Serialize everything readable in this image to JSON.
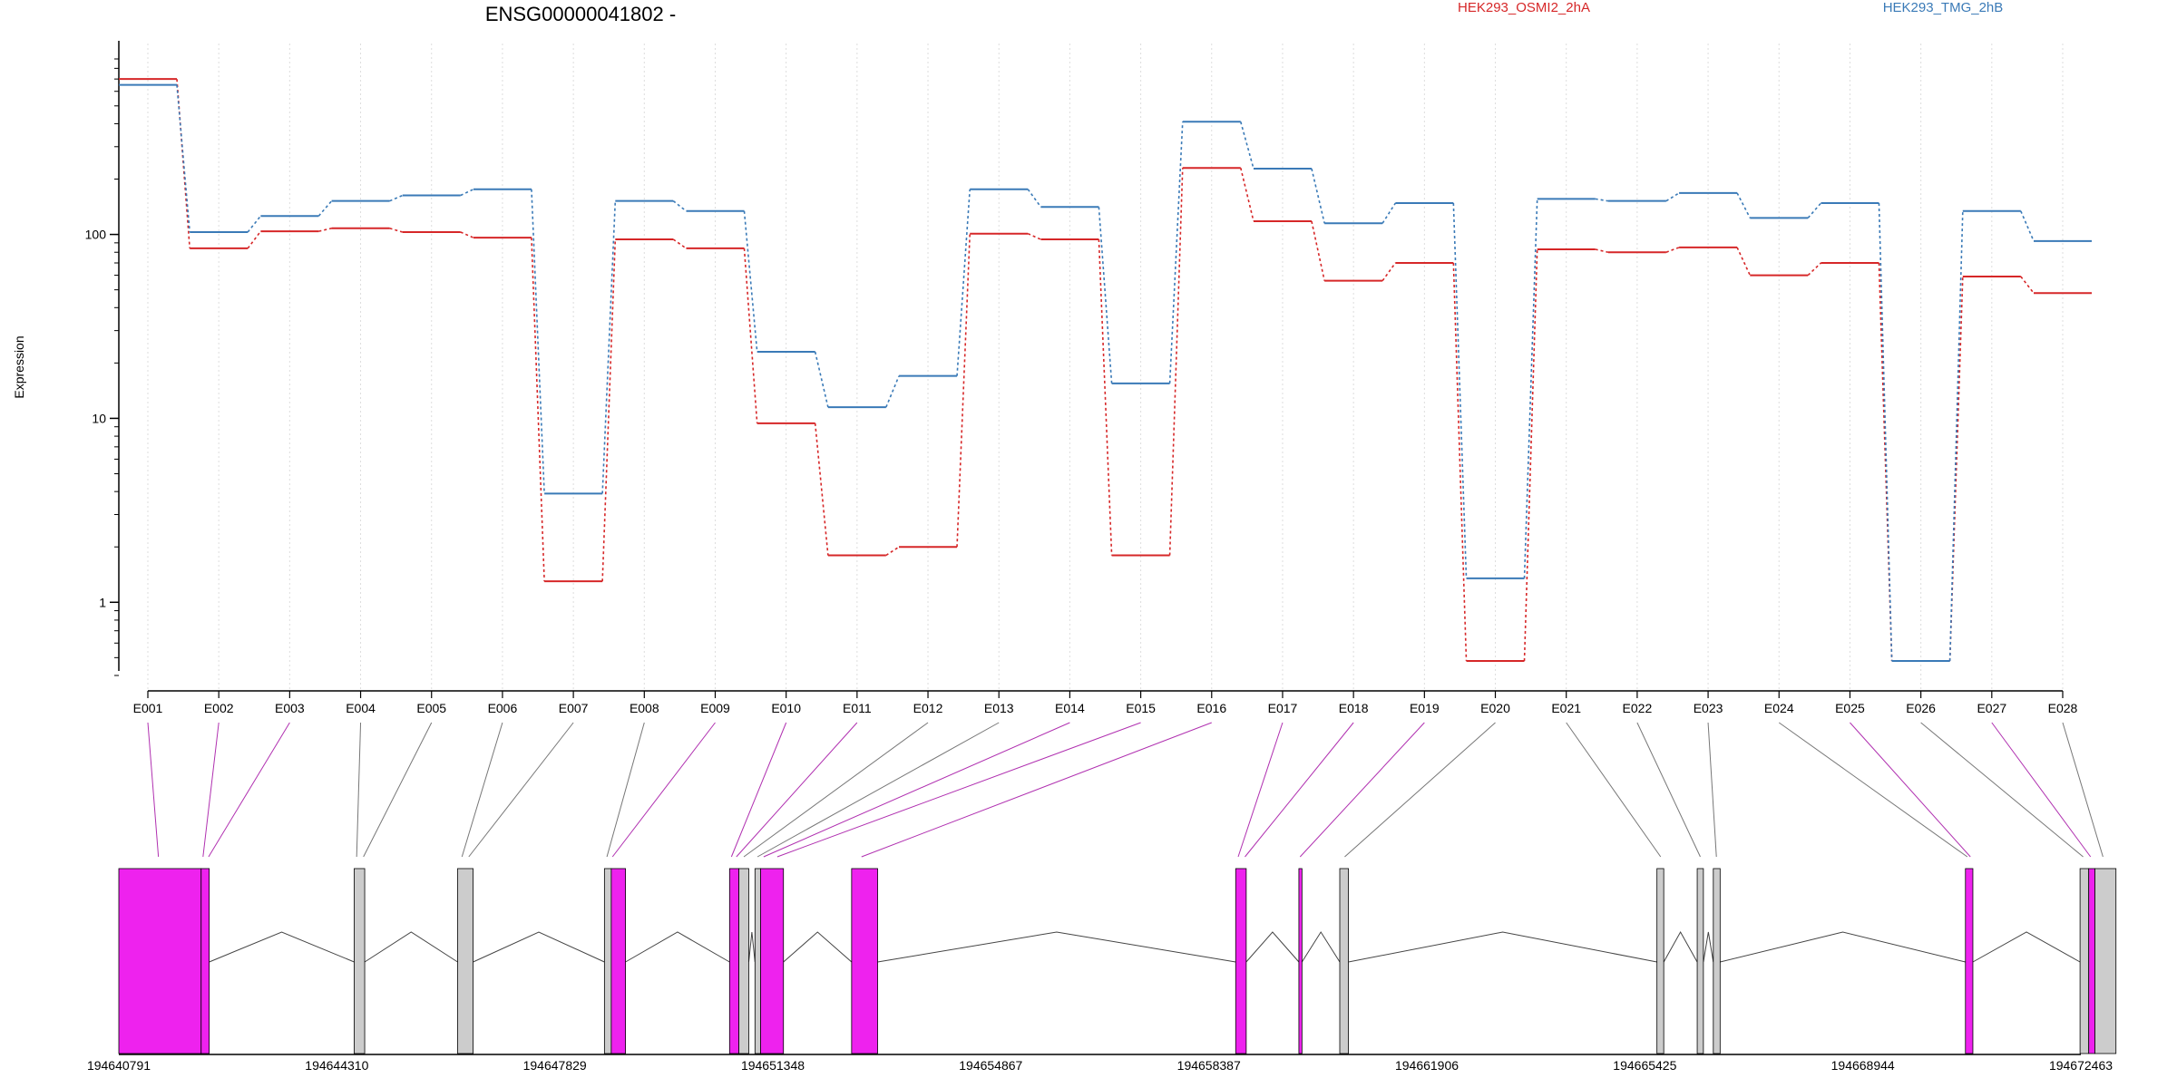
{
  "chart_data": {
    "type": "line",
    "title": "ENSG00000041802 -",
    "ylabel": "Expression",
    "yscale": "log",
    "ylim": [
      0.4,
      900
    ],
    "y_ticks": [
      1,
      10,
      100
    ],
    "y_tick_labels": [
      "1",
      "10",
      "100"
    ],
    "grid": "vertical-dotted",
    "legend_position": "top",
    "categories": [
      "E001",
      "E002",
      "E003",
      "E004",
      "E005",
      "E006",
      "E007",
      "E008",
      "E009",
      "E010",
      "E011",
      "E012",
      "E013",
      "E014",
      "E015",
      "E016",
      "E017",
      "E018",
      "E019",
      "E020",
      "E021",
      "E022",
      "E023",
      "E024",
      "E025",
      "E026",
      "E027",
      "E028"
    ],
    "series": [
      {
        "name": "HEK293_OSMI2_2hA",
        "color": "#d62728",
        "values": [
          700,
          84,
          104,
          108,
          103,
          96,
          1.3,
          94,
          84,
          9.4,
          1.8,
          2.0,
          101,
          94,
          1.8,
          230,
          118,
          56,
          70,
          0.48,
          83,
          80,
          85,
          60,
          70,
          0.48,
          59,
          48
        ]
      },
      {
        "name": "HEK293_TMG_2hB",
        "color": "#3a7ab7",
        "values": [
          650,
          103,
          126,
          152,
          163,
          176,
          3.9,
          152,
          134,
          23,
          11.5,
          17,
          176,
          141,
          15.5,
          410,
          228,
          115,
          148,
          1.35,
          156,
          152,
          168,
          123,
          148,
          0.48,
          134,
          92
        ]
      }
    ],
    "gene_model": {
      "coordinate_ticks": [
        "194640791",
        "194644310",
        "194647829",
        "194651348",
        "194654867",
        "194658387",
        "194661906",
        "194665425",
        "194668944",
        "194672463"
      ],
      "coord_start": 194640791,
      "coord_end": 194672463,
      "exon_colors": {
        "differential": "#ee22ee",
        "other": "#cccccc"
      },
      "exons": [
        {
          "start": 194640791,
          "end": 194642120,
          "differential": true
        },
        {
          "start": 194642120,
          "end": 194642250,
          "differential": true
        },
        {
          "start": 194644590,
          "end": 194644760,
          "differential": false
        },
        {
          "start": 194646260,
          "end": 194646510,
          "differential": false
        },
        {
          "start": 194648630,
          "end": 194648740,
          "differential": false
        },
        {
          "start": 194648740,
          "end": 194648970,
          "differential": true
        },
        {
          "start": 194650650,
          "end": 194650800,
          "differential": true
        },
        {
          "start": 194650800,
          "end": 194650960,
          "differential": false
        },
        {
          "start": 194651060,
          "end": 194651150,
          "differential": false
        },
        {
          "start": 194651150,
          "end": 194651520,
          "differential": true
        },
        {
          "start": 194652620,
          "end": 194653040,
          "differential": true
        },
        {
          "start": 194658820,
          "end": 194658990,
          "differential": true
        },
        {
          "start": 194659840,
          "end": 194659890,
          "differential": true
        },
        {
          "start": 194660500,
          "end": 194660640,
          "differential": false
        },
        {
          "start": 194665620,
          "end": 194665730,
          "differential": false
        },
        {
          "start": 194666270,
          "end": 194666370,
          "differential": false
        },
        {
          "start": 194666530,
          "end": 194666640,
          "differential": false
        },
        {
          "start": 194670600,
          "end": 194670720,
          "differential": true
        },
        {
          "start": 194672450,
          "end": 194672590,
          "differential": false
        },
        {
          "start": 194672590,
          "end": 194672690,
          "differential": true
        },
        {
          "start": 194672690,
          "end": 194673030,
          "differential": false
        }
      ],
      "bin_links": [
        {
          "bin": "E001",
          "pos": 194641430,
          "differential": true
        },
        {
          "bin": "E002",
          "pos": 194642150,
          "differential": true
        },
        {
          "bin": "E003",
          "pos": 194642240,
          "differential": true
        },
        {
          "bin": "E004",
          "pos": 194644630,
          "differential": false
        },
        {
          "bin": "E005",
          "pos": 194644740,
          "differential": false
        },
        {
          "bin": "E006",
          "pos": 194646330,
          "differential": false
        },
        {
          "bin": "E007",
          "pos": 194646440,
          "differential": false
        },
        {
          "bin": "E008",
          "pos": 194648670,
          "differential": false
        },
        {
          "bin": "E009",
          "pos": 194648760,
          "differential": true
        },
        {
          "bin": "E010",
          "pos": 194650680,
          "differential": true
        },
        {
          "bin": "E011",
          "pos": 194650760,
          "differential": true
        },
        {
          "bin": "E012",
          "pos": 194650880,
          "differential": false
        },
        {
          "bin": "E013",
          "pos": 194651100,
          "differential": false
        },
        {
          "bin": "E014",
          "pos": 194651200,
          "differential": true
        },
        {
          "bin": "E015",
          "pos": 194651420,
          "differential": true
        },
        {
          "bin": "E016",
          "pos": 194652780,
          "differential": true
        },
        {
          "bin": "E017",
          "pos": 194658860,
          "differential": true
        },
        {
          "bin": "E018",
          "pos": 194658970,
          "differential": true
        },
        {
          "bin": "E019",
          "pos": 194659860,
          "differential": true
        },
        {
          "bin": "E020",
          "pos": 194660580,
          "differential": false
        },
        {
          "bin": "E021",
          "pos": 194665680,
          "differential": false
        },
        {
          "bin": "E022",
          "pos": 194666320,
          "differential": false
        },
        {
          "bin": "E023",
          "pos": 194666580,
          "differential": false
        },
        {
          "bin": "E024",
          "pos": 194670630,
          "differential": false
        },
        {
          "bin": "E025",
          "pos": 194670680,
          "differential": true
        },
        {
          "bin": "E026",
          "pos": 194672500,
          "differential": false
        },
        {
          "bin": "E027",
          "pos": 194672620,
          "differential": true
        },
        {
          "bin": "E028",
          "pos": 194672820,
          "differential": false
        }
      ]
    }
  }
}
